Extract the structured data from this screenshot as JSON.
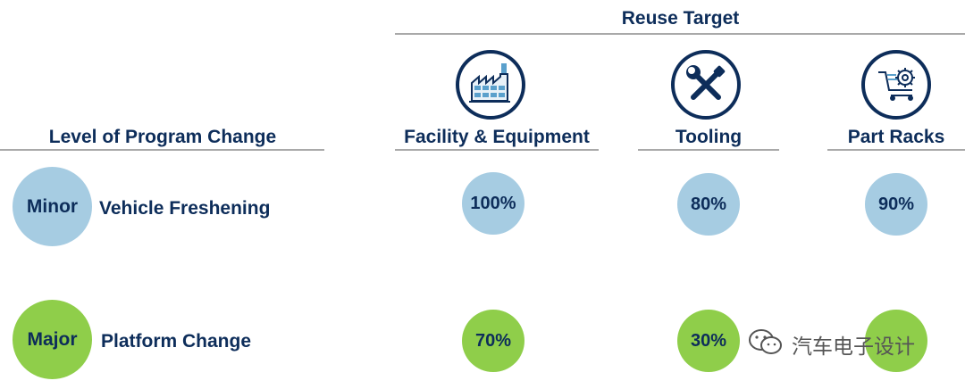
{
  "header": {
    "reuse_target": "Reuse Target",
    "level_label": "Level of Program Change"
  },
  "columns": [
    {
      "label": "Facility & Equipment",
      "icon": "factory-icon"
    },
    {
      "label": "Tooling",
      "icon": "wrench-screwdriver-icon"
    },
    {
      "label": "Part Racks",
      "icon": "rack-gear-icon"
    }
  ],
  "rows": [
    {
      "level": "Minor",
      "description": "Vehicle Freshening",
      "color": "#a6cce2",
      "values": [
        "100%",
        "80%",
        "90%"
      ]
    },
    {
      "level": "Major",
      "description": "Platform Change",
      "color": "#8fce4a",
      "values": [
        "70%",
        "30%",
        ""
      ]
    }
  ],
  "colors": {
    "navy": "#0d2d5a",
    "minor": "#a6cce2",
    "major": "#8fce4a",
    "rule": "#a9a9a9"
  },
  "watermark": {
    "text": "汽车电子设计",
    "icon": "wechat-icon"
  }
}
